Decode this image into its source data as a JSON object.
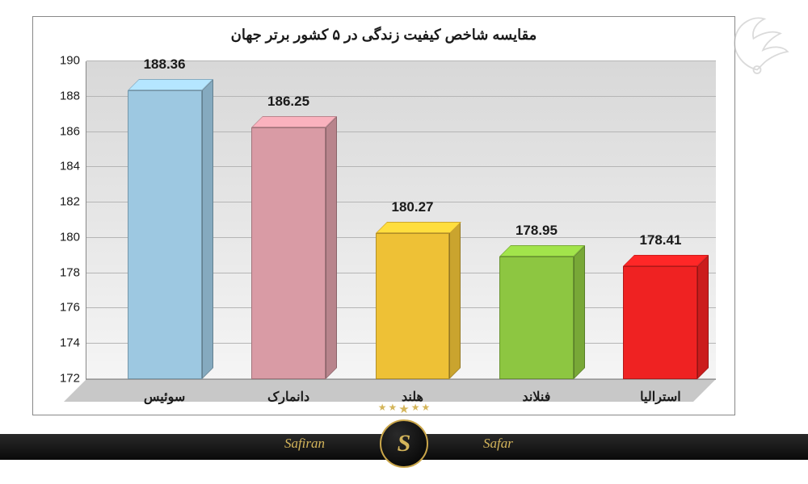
{
  "chart": {
    "type": "bar",
    "title": "مقایسه شاخص کیفیت زندگی در ۵ کشور برتر جهان",
    "title_fontsize": 18,
    "title_color": "#1a1a1a",
    "categories": [
      "سوئیس",
      "دانمارک",
      "هلند",
      "فنلاند",
      "استرالیا"
    ],
    "values": [
      188.36,
      186.25,
      180.27,
      178.95,
      178.41
    ],
    "value_labels": [
      "188.36",
      "186.25",
      "180.27",
      "178.95",
      "178.41"
    ],
    "bar_colors": [
      "#9dc8e1",
      "#d99ba5",
      "#eec136",
      "#8dc641",
      "#ef2222"
    ],
    "ylim": [
      172,
      190
    ],
    "ytick_step": 2,
    "yticks": [
      "172",
      "174",
      "176",
      "178",
      "180",
      "182",
      "184",
      "186",
      "188",
      "190"
    ],
    "label_fontsize": 15,
    "value_fontsize": 17,
    "category_fontsize": 16,
    "background_gradient_top": "#d8d8d8",
    "background_gradient_bottom": "#f5f5f5",
    "grid_color": "#b5b5b5",
    "floor_color": "#c8c8c8",
    "border_color": "#888888",
    "bar_width_pct": 11.8,
    "bar_positions_pct": [
      6.5,
      26.2,
      45.9,
      65.6,
      85.3
    ]
  },
  "branding": {
    "band_color_top": "#2a2a2a",
    "band_color_bottom": "#0a0a0a",
    "accent_color": "#d4b55a",
    "logo_left_text": "Safiran",
    "logo_right_text": "Safar",
    "logo_letter": "S",
    "stars_count": 5
  }
}
